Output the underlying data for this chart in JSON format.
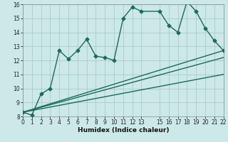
{
  "title": "",
  "xlabel": "Humidex (Indice chaleur)",
  "ylabel": "",
  "bg_color": "#cce8e8",
  "grid_color": "#aacccc",
  "line_color": "#1a6b5a",
  "xlim": [
    0,
    22
  ],
  "ylim": [
    8,
    16
  ],
  "xtick_vals": [
    0,
    1,
    2,
    3,
    4,
    5,
    6,
    7,
    8,
    9,
    10,
    11,
    12,
    13,
    15,
    16,
    17,
    18,
    19,
    20,
    21,
    22
  ],
  "ytick_vals": [
    8,
    9,
    10,
    11,
    12,
    13,
    14,
    15,
    16
  ],
  "main_x": [
    0,
    1,
    2,
    3,
    4,
    5,
    6,
    7,
    8,
    9,
    10,
    11,
    12,
    13,
    15,
    16,
    17,
    18,
    19,
    20,
    21,
    22
  ],
  "main_y": [
    8.3,
    8.1,
    9.6,
    10.0,
    12.7,
    12.1,
    12.7,
    13.5,
    12.3,
    12.2,
    12.0,
    15.0,
    15.8,
    15.5,
    15.5,
    14.5,
    14.0,
    16.2,
    15.5,
    14.3,
    13.4,
    12.7
  ],
  "line1_x": [
    0,
    22
  ],
  "line1_y": [
    8.3,
    12.7
  ],
  "line2_x": [
    0,
    22
  ],
  "line2_y": [
    8.3,
    12.2
  ],
  "line3_x": [
    0,
    22
  ],
  "line3_y": [
    8.3,
    11.0
  ],
  "marker_size": 2.5,
  "line_width": 1.0,
  "tick_fontsize": 5.5,
  "xlabel_fontsize": 6.5
}
